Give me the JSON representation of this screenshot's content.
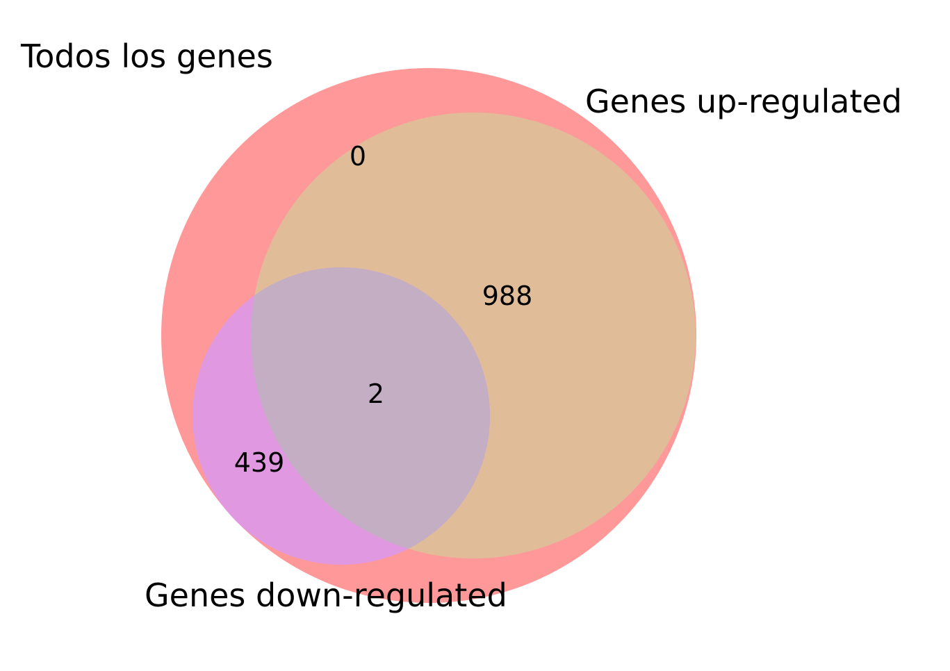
{
  "diagram": {
    "type": "venn3",
    "sets": [
      {
        "id": "all",
        "label": "Todos los genes",
        "color": "#ff9999"
      },
      {
        "id": "up",
        "label": "Genes up-regulated",
        "color": "#e0bd98"
      },
      {
        "id": "down",
        "label": "Genes down-regulated",
        "color": "#e099e0"
      }
    ],
    "regions": [
      {
        "sets": [
          "all"
        ],
        "count": "0"
      },
      {
        "sets": [
          "all",
          "up"
        ],
        "count": "988"
      },
      {
        "sets": [
          "all",
          "up",
          "down"
        ],
        "count": "2"
      },
      {
        "sets": [
          "all",
          "down"
        ],
        "count": "439"
      }
    ],
    "overlap_color": "#c3aec3"
  }
}
